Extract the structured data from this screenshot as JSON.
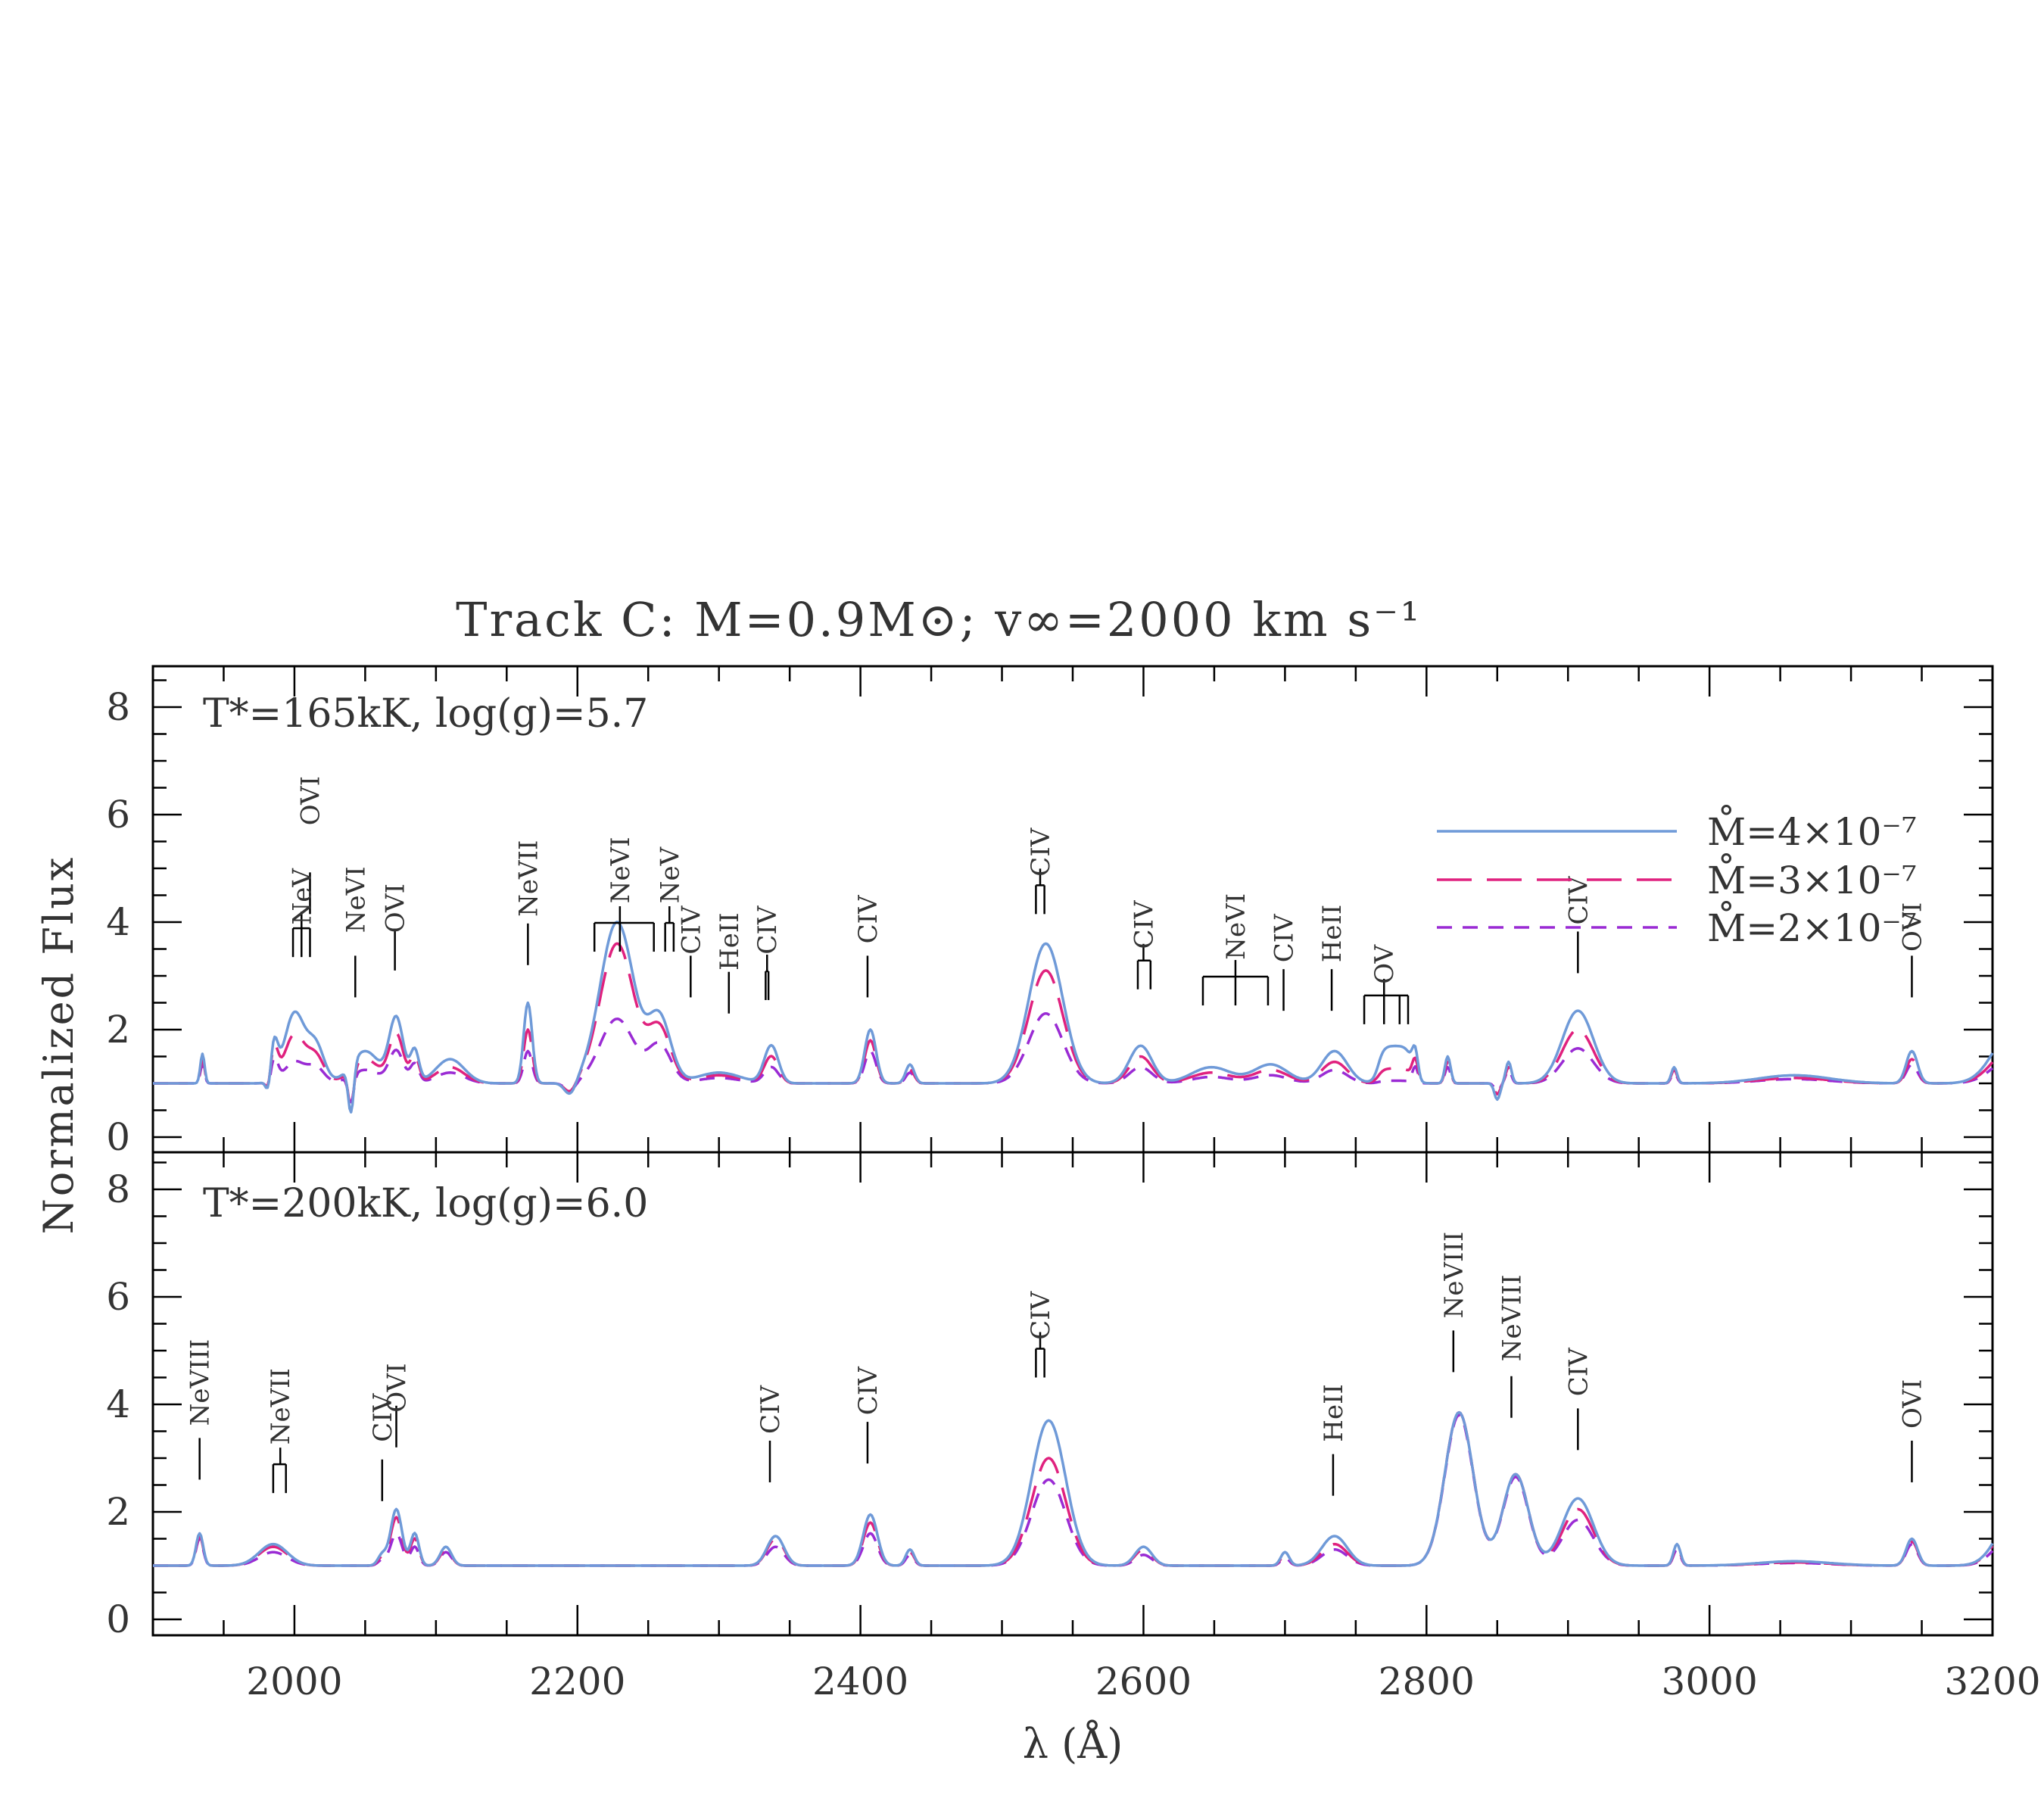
{
  "chart_data": {
    "type": "line",
    "title": "Track C: M=0.9M⊙; v∞=2000 km s⁻¹",
    "xlabel": "λ (Å)",
    "ylabel": "Normalized Flux",
    "xlim": [
      1900,
      3200
    ],
    "ylim": [
      0,
      9
    ],
    "x_ticks": [
      2000,
      2200,
      2400,
      2600,
      2800,
      3000,
      3200
    ],
    "y_ticks": [
      0,
      2,
      4,
      6,
      8
    ],
    "legend_placement": "top-right",
    "colors": {
      "blue": "#6f9ad8",
      "magenta": "#e0217e",
      "purple": "#9a2bd4",
      "axis": "#000000"
    },
    "legend": [
      {
        "label": "M̊=4×10⁻⁷",
        "color": "#6f9ad8",
        "style": "solid"
      },
      {
        "label": "M̊=3×10⁻⁷",
        "color": "#e0217e",
        "style": "long-dash"
      },
      {
        "label": "M̊=2×10⁻⁷",
        "color": "#9a2bd4",
        "style": "short-dash"
      }
    ],
    "panels": [
      {
        "label": "T*=165kK, log(g)=5.7",
        "continuum": 1.0,
        "features": [
          {
            "center": 1935,
            "width": 1.5,
            "amps": [
              0.55,
              0.45,
              0.35
            ]
          },
          {
            "center": 1982,
            "width": 2,
            "amps": [
              -0.5,
              -0.4,
              -0.3
            ]
          },
          {
            "center": 1985,
            "width": 3,
            "amps": [
              0.8,
              0.7,
              0.5
            ]
          },
          {
            "center": 2000,
            "width": 7,
            "amps": [
              1.3,
              0.9,
              0.4
            ]
          },
          {
            "center": 2015,
            "width": 6,
            "amps": [
              0.7,
              0.5,
              0.3
            ]
          },
          {
            "center": 2040,
            "width": 2,
            "amps": [
              -0.9,
              -0.7,
              -0.5
            ]
          },
          {
            "center": 2050,
            "width": 10,
            "amps": [
              0.6,
              0.45,
              0.25
            ]
          },
          {
            "center": 2072,
            "width": 5,
            "amps": [
              1.2,
              0.9,
              0.6
            ]
          },
          {
            "center": 2085,
            "width": 3,
            "amps": [
              0.6,
              0.5,
              0.35
            ]
          },
          {
            "center": 2110,
            "width": 10,
            "amps": [
              0.45,
              0.3,
              0.2
            ]
          },
          {
            "center": 2165,
            "width": 3,
            "amps": [
              1.5,
              1.0,
              0.6
            ]
          },
          {
            "center": 2195,
            "width": 4,
            "amps": [
              -0.25,
              -0.2,
              -0.15
            ]
          },
          {
            "center": 2228,
            "width": 12,
            "amps": [
              3.0,
              2.6,
              1.2
            ]
          },
          {
            "center": 2258,
            "width": 8,
            "amps": [
              1.2,
              1.0,
              0.7
            ]
          },
          {
            "center": 2300,
            "width": 15,
            "amps": [
              0.2,
              0.15,
              0.1
            ]
          },
          {
            "center": 2337,
            "width": 5,
            "amps": [
              0.7,
              0.5,
              0.3
            ]
          },
          {
            "center": 2407,
            "width": 4,
            "amps": [
              1.0,
              0.8,
              0.6
            ]
          },
          {
            "center": 2435,
            "width": 3,
            "amps": [
              0.35,
              0.25,
              0.2
            ]
          },
          {
            "center": 2531,
            "width": 12,
            "amps": [
              2.6,
              2.1,
              1.3
            ]
          },
          {
            "center": 2598,
            "width": 8,
            "amps": [
              0.7,
              0.5,
              0.3
            ]
          },
          {
            "center": 2648,
            "width": 14,
            "amps": [
              0.3,
              0.2,
              0.12
            ]
          },
          {
            "center": 2690,
            "width": 12,
            "amps": [
              0.35,
              0.25,
              0.15
            ]
          },
          {
            "center": 2735,
            "width": 9,
            "amps": [
              0.6,
              0.4,
              0.25
            ]
          },
          {
            "center": 2792,
            "width": 2,
            "amps": [
              0.5,
              0.4,
              0.3
            ]
          },
          {
            "center": 2815,
            "width": 2,
            "amps": [
              0.5,
              0.4,
              0.3
            ]
          },
          {
            "center": 2850,
            "width": 2,
            "amps": [
              -0.3,
              -0.2,
              -0.15
            ]
          },
          {
            "center": 2858,
            "width": 2,
            "amps": [
              0.4,
              0.3,
              0.25
            ]
          },
          {
            "center": 2907,
            "width": 11,
            "amps": [
              1.35,
              1.0,
              0.65
            ]
          },
          {
            "center": 2975,
            "width": 2,
            "amps": [
              0.3,
              0.25,
              0.2
            ]
          },
          {
            "center": 3060,
            "width": 25,
            "amps": [
              0.15,
              0.1,
              0.08
            ]
          },
          {
            "center": 3143,
            "width": 4,
            "amps": [
              0.6,
              0.45,
              0.35
            ]
          },
          {
            "center": 3215,
            "width": 14,
            "amps": [
              1.0,
              0.7,
              0.5
            ]
          }
        ],
        "plateaus": [
          {
            "from": 2766,
            "to": 2790,
            "levels": [
              1.7,
              1.28,
              1.05
            ]
          }
        ],
        "annotations": [
          {
            "label": "OVI",
            "x": 2011,
            "ticks": [
              2011
            ],
            "label_y": 5.8,
            "tick_bottom": 4.15
          },
          {
            "label": "NeV",
            "x": 2005,
            "ticks": [
              1999,
              2005,
              2011
            ],
            "label_y": 3.95,
            "tick_bottom": 3.35
          },
          {
            "label": "NeVI",
            "x": 2043,
            "ticks": [
              2043
            ],
            "label_y": 3.8,
            "tick_bottom": 2.6
          },
          {
            "label": "OVI",
            "x": 2071,
            "ticks": [
              2071
            ],
            "label_y": 3.8,
            "tick_bottom": 3.1
          },
          {
            "label": "NeVII",
            "x": 2165,
            "ticks": [
              2165
            ],
            "label_y": 4.1,
            "tick_bottom": 3.2
          },
          {
            "label": "NeVI",
            "x": 2230,
            "ticks": [
              2212,
              2230,
              2254
            ],
            "label_y": 4.35,
            "tick_bottom": 3.45
          },
          {
            "label": "NeV",
            "x": 2265,
            "ticks": [
              2262,
              2268
            ],
            "label_y": 4.35,
            "tick_bottom": 3.45
          },
          {
            "label": "CIV",
            "x": 2280,
            "ticks": [
              2280
            ],
            "label_y": 3.4,
            "tick_bottom": 2.6
          },
          {
            "label": "HeII",
            "x": 2307,
            "ticks": [
              2307
            ],
            "label_y": 3.1,
            "tick_bottom": 2.3
          },
          {
            "label": "CIV",
            "x": 2334,
            "ticks": [
              2333,
              2335
            ],
            "label_y": 3.4,
            "tick_bottom": 2.55
          },
          {
            "label": "CIV",
            "x": 2405,
            "ticks": [
              2405
            ],
            "label_y": 3.6,
            "tick_bottom": 2.6
          },
          {
            "label": "CIV",
            "x": 2527,
            "ticks": [
              2524,
              2530
            ],
            "label_y": 4.85,
            "tick_bottom": 4.15
          },
          {
            "label": "CIV",
            "x": 2600,
            "ticks": [
              2596,
              2605
            ],
            "label_y": 3.5,
            "tick_bottom": 2.75
          },
          {
            "label": "NeVI",
            "x": 2665,
            "ticks": [
              2642,
              2665,
              2688
            ],
            "label_y": 3.3,
            "tick_bottom": 2.45
          },
          {
            "label": "CIV",
            "x": 2699,
            "ticks": [
              2699
            ],
            "label_y": 3.25,
            "tick_bottom": 2.35
          },
          {
            "label": "HeII",
            "x": 2733,
            "ticks": [
              2733
            ],
            "label_y": 3.25,
            "tick_bottom": 2.35
          },
          {
            "label": "OV",
            "x": 2770,
            "ticks": [
              2756,
              2770,
              2781,
              2787
            ],
            "label_y": 2.85,
            "tick_bottom": 2.1
          },
          {
            "label": "CIV",
            "x": 2907,
            "ticks": [
              2907
            ],
            "label_y": 3.95,
            "tick_bottom": 3.05
          },
          {
            "label": "OVI",
            "x": 3143,
            "ticks": [
              3143
            ],
            "label_y": 3.45,
            "tick_bottom": 2.6
          }
        ]
      },
      {
        "label": "T*=200kK, log(g)=6.0",
        "continuum": 1.0,
        "features": [
          {
            "center": 1933,
            "width": 2.5,
            "amps": [
              0.6,
              0.55,
              0.5
            ]
          },
          {
            "center": 1985,
            "width": 10,
            "amps": [
              0.4,
              0.35,
              0.25
            ]
          },
          {
            "center": 2062,
            "width": 3,
            "amps": [
              0.2,
              0.15,
              0.1
            ]
          },
          {
            "center": 2072,
            "width": 4,
            "amps": [
              1.05,
              0.9,
              0.6
            ]
          },
          {
            "center": 2085,
            "width": 3,
            "amps": [
              0.6,
              0.5,
              0.35
            ]
          },
          {
            "center": 2107,
            "width": 4,
            "amps": [
              0.35,
              0.3,
              0.25
            ]
          },
          {
            "center": 2340,
            "width": 6,
            "amps": [
              0.55,
              0.5,
              0.35
            ]
          },
          {
            "center": 2407,
            "width": 5,
            "amps": [
              0.95,
              0.8,
              0.6
            ]
          },
          {
            "center": 2435,
            "width": 3,
            "amps": [
              0.3,
              0.25,
              0.2
            ]
          },
          {
            "center": 2533,
            "width": 12,
            "amps": [
              2.7,
              2.0,
              1.6
            ]
          },
          {
            "center": 2600,
            "width": 6,
            "amps": [
              0.35,
              0.3,
              0.2
            ]
          },
          {
            "center": 2700,
            "width": 3,
            "amps": [
              0.25,
              0.2,
              0.15
            ]
          },
          {
            "center": 2735,
            "width": 9,
            "amps": [
              0.55,
              0.4,
              0.3
            ]
          },
          {
            "center": 2823,
            "width": 10,
            "amps": [
              2.85,
              2.85,
              2.8
            ]
          },
          {
            "center": 2863,
            "width": 9,
            "amps": [
              1.7,
              1.7,
              1.65
            ]
          },
          {
            "center": 2907,
            "width": 11,
            "amps": [
              1.25,
              1.05,
              0.85
            ]
          },
          {
            "center": 2977,
            "width": 2.5,
            "amps": [
              0.4,
              0.35,
              0.3
            ]
          },
          {
            "center": 3060,
            "width": 25,
            "amps": [
              0.08,
              0.06,
              0.05
            ]
          },
          {
            "center": 3143,
            "width": 4,
            "amps": [
              0.5,
              0.45,
              0.4
            ]
          },
          {
            "center": 3215,
            "width": 12,
            "amps": [
              0.9,
              0.8,
              0.6
            ]
          }
        ],
        "plateaus": [],
        "annotations": [
          {
            "label": "NeVIII",
            "x": 1933,
            "ticks": [
              1933
            ],
            "label_y": 3.6,
            "tick_bottom": 2.6
          },
          {
            "label": "NeVII",
            "x": 1990,
            "ticks": [
              1985,
              1994
            ],
            "label_y": 3.25,
            "tick_bottom": 2.35
          },
          {
            "label": "CIV",
            "x": 2062,
            "ticks": [
              2062
            ],
            "label_y": 3.3,
            "tick_bottom": 2.2
          },
          {
            "label": "OVI",
            "x": 2072,
            "ticks": [
              2072
            ],
            "label_y": 3.85,
            "tick_bottom": 3.2
          },
          {
            "label": "CIV",
            "x": 2336,
            "ticks": [
              2336
            ],
            "label_y": 3.45,
            "tick_bottom": 2.55
          },
          {
            "label": "CIV",
            "x": 2405,
            "ticks": [
              2405
            ],
            "label_y": 3.8,
            "tick_bottom": 2.9
          },
          {
            "label": "CIV",
            "x": 2527,
            "ticks": [
              2524,
              2530
            ],
            "label_y": 5.2,
            "tick_bottom": 4.5
          },
          {
            "label": "HeII",
            "x": 2734,
            "ticks": [
              2734
            ],
            "label_y": 3.3,
            "tick_bottom": 2.3
          },
          {
            "label": "NeVIII",
            "x": 2819,
            "ticks": [
              2819
            ],
            "label_y": 5.6,
            "tick_bottom": 4.6
          },
          {
            "label": "NeVIII",
            "x": 2860,
            "ticks": [
              2860
            ],
            "label_y": 4.8,
            "tick_bottom": 3.75
          },
          {
            "label": "CIV",
            "x": 2907,
            "ticks": [
              2907
            ],
            "label_y": 4.15,
            "tick_bottom": 3.15
          },
          {
            "label": "OVI",
            "x": 3143,
            "ticks": [
              3143
            ],
            "label_y": 3.55,
            "tick_bottom": 2.55
          }
        ]
      }
    ]
  }
}
